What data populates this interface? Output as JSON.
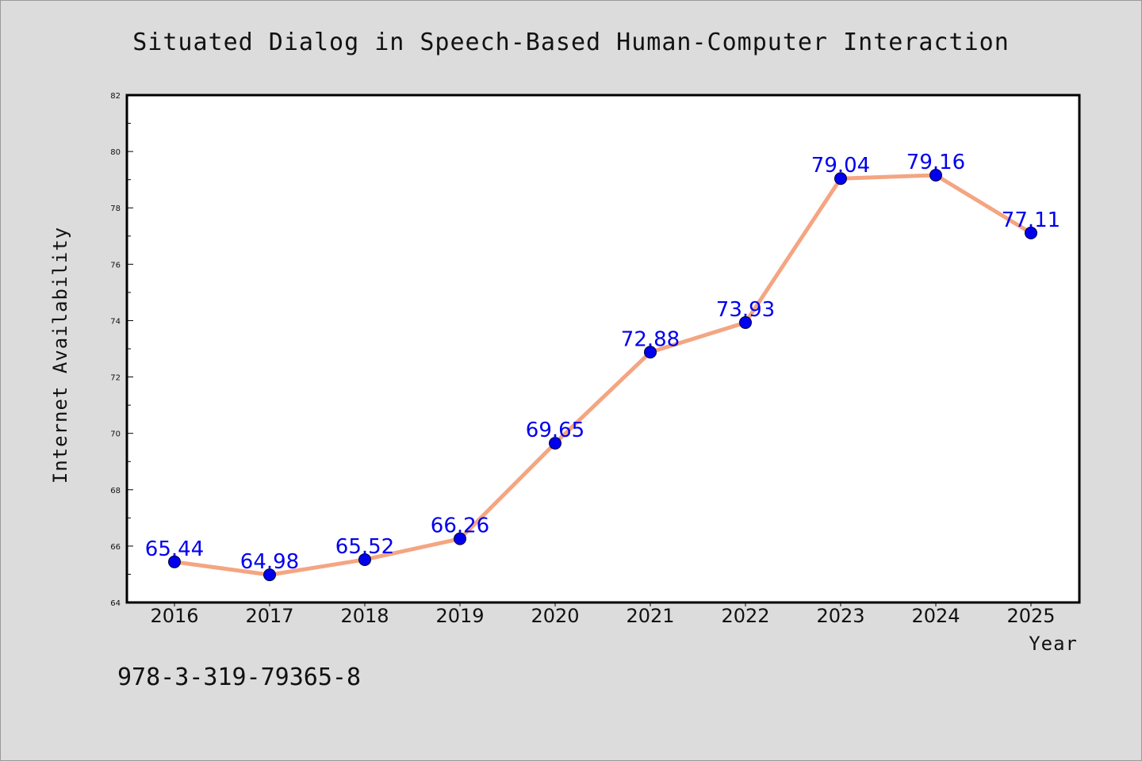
{
  "chart_data": {
    "type": "line",
    "title": "Situated Dialog in Speech-Based Human-Computer Interaction",
    "xlabel": "Year",
    "ylabel": "Internet Availability",
    "categories": [
      "2016",
      "2017",
      "2018",
      "2019",
      "2020",
      "2021",
      "2022",
      "2023",
      "2024",
      "2025"
    ],
    "series": [
      {
        "values": [
          65.44,
          64.98,
          65.52,
          66.26,
          69.65,
          72.88,
          73.93,
          79.04,
          79.16,
          77.11
        ],
        "labels": [
          "65.44",
          "64.98",
          "65.52",
          "66.26",
          "69.65",
          "72.88",
          "73.93",
          "79.04",
          "79.16",
          "77.11"
        ]
      }
    ],
    "ylim": [
      64,
      82
    ],
    "yticks": [
      "64",
      "66",
      "68",
      "70",
      "72",
      "74",
      "76",
      "78",
      "80",
      "82"
    ],
    "grid": false,
    "legend": "none",
    "colors": {
      "line": "#f4a582",
      "marker": "#0000ee",
      "label": "#0000ee",
      "background": "#dcdcdc",
      "plot_background": "#ffffff"
    }
  },
  "annotation": "978-3-319-79365-8"
}
